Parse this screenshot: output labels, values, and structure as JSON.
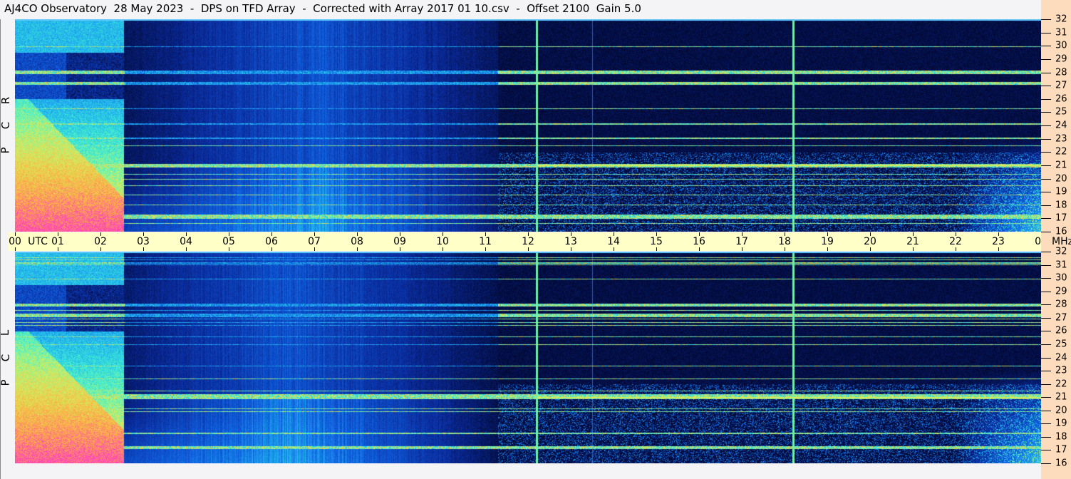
{
  "title": "AJ4CO Observatory  28 May 2023  -  DPS on TFD Array  -  Corrected with Array 2017 01 10.csv  -  Offset 2100  Gain 5.0",
  "chart_data": {
    "type": "heatmap",
    "panels": [
      {
        "name": "RCP",
        "label_letters": [
          "R",
          "C",
          "P"
        ]
      },
      {
        "name": "LCP",
        "label_letters": [
          "L",
          "C",
          "P"
        ]
      }
    ],
    "xaxis": {
      "unit_label": "UTC",
      "range_hours": [
        0,
        24
      ],
      "ticks": [
        "00",
        "01",
        "02",
        "03",
        "04",
        "05",
        "06",
        "07",
        "08",
        "09",
        "10",
        "11",
        "12",
        "13",
        "14",
        "15",
        "16",
        "17",
        "18",
        "19",
        "20",
        "21",
        "22",
        "23",
        "00"
      ]
    },
    "yaxis": {
      "unit_label": "MHz",
      "range": [
        16,
        32
      ],
      "ticks": [
        16,
        17,
        18,
        19,
        20,
        21,
        22,
        23,
        24,
        25,
        26,
        27,
        28,
        29,
        30,
        31,
        32
      ]
    },
    "colormap": [
      "#000018",
      "#0a2a9a",
      "#1060e0",
      "#20b0f0",
      "#40f0d0",
      "#d0f060",
      "#ffb040",
      "#ff40c0"
    ],
    "features": {
      "vertical_marks_utc": [
        12.2,
        18.2
      ],
      "strong_bands_mhz": [
        17.2,
        21.0,
        27.2,
        28.0
      ],
      "bright_left_until_utc": 2.55,
      "diffuse_blue_region_utc": [
        2.55,
        11.3
      ],
      "dawn_dusk_rise_utc": [
        0,
        1.2,
        22.0,
        24
      ]
    }
  }
}
